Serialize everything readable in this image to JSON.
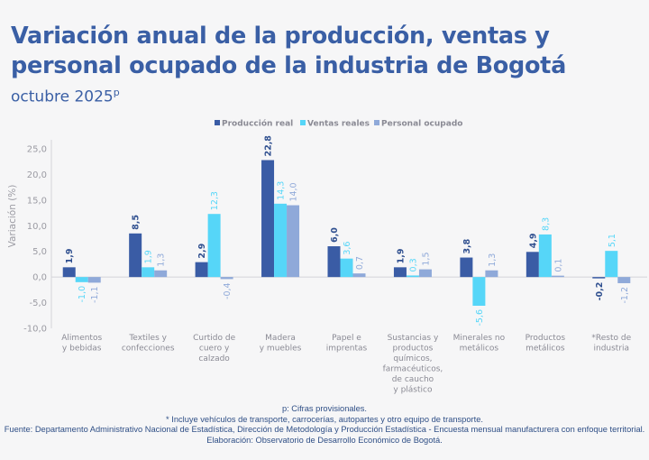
{
  "header": {
    "title": "Variación anual de la producción, ventas y personal ocupado de la industria de Bogotá",
    "subtitle": "octubre 2025",
    "subtitle_sup": "p"
  },
  "chart_data": {
    "type": "bar",
    "ylabel": "Variación (%)",
    "ylim": [
      -10,
      25
    ],
    "yticks": [
      "-10,0",
      "-5,0",
      "0,0",
      "5,0",
      "10,0",
      "15,0",
      "20,0",
      "25,0"
    ],
    "legend_position": "top",
    "grid": false,
    "categories": [
      [
        "Alimentos",
        "y bebidas"
      ],
      [
        "Textiles y",
        "confecciones"
      ],
      [
        "Curtido de",
        "cuero y",
        "calzado"
      ],
      [
        "Madera",
        "y muebles"
      ],
      [
        "Papel e",
        "imprentas"
      ],
      [
        "Sustancias y",
        "productos",
        "químicos,",
        "farmacéuticos,",
        "de caucho",
        "y plástico"
      ],
      [
        "Minerales no",
        "metálicos"
      ],
      [
        "Productos",
        "metálicos"
      ],
      [
        "*Resto de",
        "industria"
      ]
    ],
    "series": [
      {
        "name": "Producción real",
        "color": "#3a5ca5",
        "values": [
          1.9,
          8.5,
          2.9,
          22.8,
          6.0,
          1.9,
          3.8,
          4.9,
          -0.2
        ],
        "labels": [
          "1,9",
          "8,5",
          "2,9",
          "22,8",
          "6,0",
          "1,9",
          "3,8",
          "4,9",
          "-0,2"
        ]
      },
      {
        "name": "Ventas reales",
        "color": "#56d6f8",
        "values": [
          -1.0,
          1.9,
          12.3,
          14.3,
          3.6,
          0.3,
          -5.6,
          8.3,
          5.1
        ],
        "labels": [
          "-1,0",
          "1,9",
          "12,3",
          "14,3",
          "3,6",
          "0,3",
          "-5,6",
          "8,3",
          "5,1"
        ]
      },
      {
        "name": "Personal ocupado",
        "color": "#8fa9d9",
        "values": [
          -1.1,
          1.3,
          -0.4,
          14.0,
          0.7,
          1.5,
          1.3,
          0.1,
          -1.2
        ],
        "labels": [
          "-1,1",
          "1,3",
          "-0,4",
          "14,0",
          "0,7",
          "1,5",
          "1,3",
          "0,1",
          "-1,2"
        ]
      }
    ]
  },
  "footer": {
    "note_p": "p: Cifras provisionales.",
    "note_star": "*  Incluye vehículos de transporte, carrocerías, autopartes y otro equipo de transporte.",
    "source": "Fuente: Departamento Administrativo Nacional de Estadística, Dirección de Metodología y Producción Estadística - Encuesta mensual manufacturera con enfoque territorial.",
    "elaboration": "Elaboración: Observatorio de Desarrollo Económico de Bogotá."
  }
}
